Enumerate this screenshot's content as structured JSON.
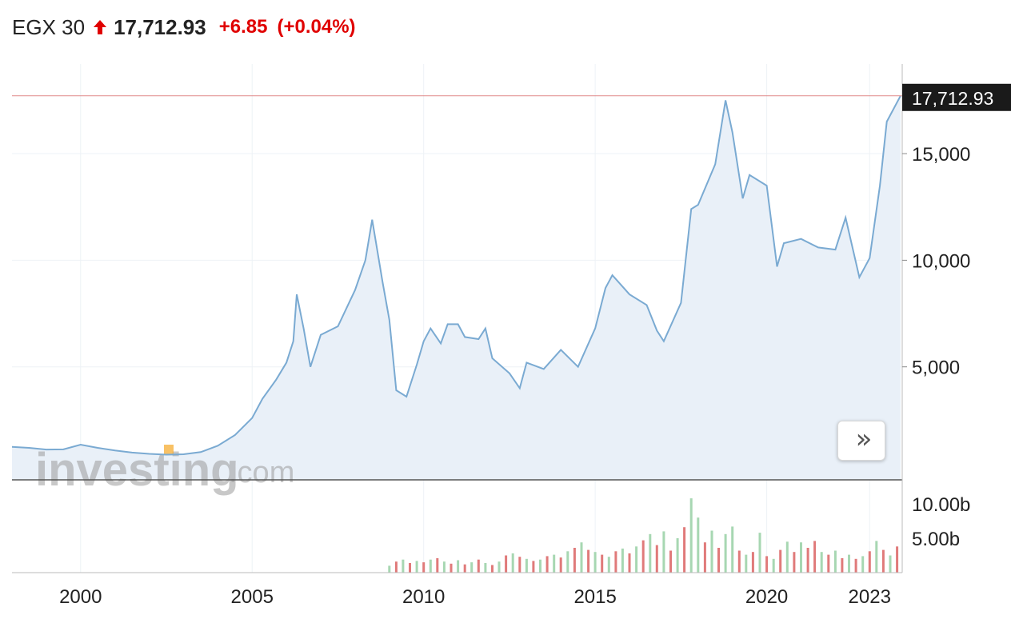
{
  "header": {
    "name": "EGX 30",
    "price": "17,712.93",
    "change": "+6.85",
    "change_pct": "(+0.04%)",
    "direction_icon": "up-arrow-icon",
    "up_color": "#e00000"
  },
  "watermark": {
    "brand": "investing",
    "suffix": ".com"
  },
  "nav_button": {
    "icon": "double-chevron-right-icon",
    "glyph": "»"
  },
  "colors": {
    "line": "#7aaad2",
    "area": "#e9f0f8",
    "grid": "#eef2f6",
    "up_volume": "#a7d7b2",
    "down_volume": "#e07a7a",
    "price_tag_bg": "#1a1a1a",
    "last_price_line": "#e08a8a"
  },
  "chart_data": {
    "type": "area",
    "x_ticks": [
      "2000",
      "2005",
      "2010",
      "2015",
      "2020",
      "2023"
    ],
    "y_ticks": [
      "15,000",
      "10,000",
      "5,000"
    ],
    "y_tick_values": [
      15000,
      10000,
      5000
    ],
    "volume_ticks": [
      "10.00b",
      "5.00b"
    ],
    "volume_tick_values": [
      10,
      5
    ],
    "last_price": 17712.93,
    "last_price_label": "17,712.93",
    "price_series": [
      [
        1998.0,
        1250
      ],
      [
        1998.5,
        1200
      ],
      [
        1999.0,
        1120
      ],
      [
        1999.5,
        1130
      ],
      [
        2000.0,
        1350
      ],
      [
        2000.5,
        1200
      ],
      [
        2001.0,
        1080
      ],
      [
        2001.5,
        980
      ],
      [
        2002.0,
        920
      ],
      [
        2002.5,
        880
      ],
      [
        2003.0,
        900
      ],
      [
        2003.5,
        1000
      ],
      [
        2004.0,
        1300
      ],
      [
        2004.5,
        1800
      ],
      [
        2005.0,
        2600
      ],
      [
        2005.3,
        3500
      ],
      [
        2005.7,
        4400
      ],
      [
        2006.0,
        5200
      ],
      [
        2006.2,
        6200
      ],
      [
        2006.3,
        8400
      ],
      [
        2006.5,
        6800
      ],
      [
        2006.7,
        5000
      ],
      [
        2007.0,
        6500
      ],
      [
        2007.5,
        6900
      ],
      [
        2008.0,
        8600
      ],
      [
        2008.3,
        10000
      ],
      [
        2008.5,
        11900
      ],
      [
        2008.8,
        9000
      ],
      [
        2009.0,
        7200
      ],
      [
        2009.2,
        3900
      ],
      [
        2009.5,
        3600
      ],
      [
        2009.8,
        5100
      ],
      [
        2010.0,
        6200
      ],
      [
        2010.2,
        6800
      ],
      [
        2010.5,
        6100
      ],
      [
        2010.7,
        7000
      ],
      [
        2011.0,
        7000
      ],
      [
        2011.2,
        6400
      ],
      [
        2011.6,
        6300
      ],
      [
        2011.8,
        6800
      ],
      [
        2012.0,
        5400
      ],
      [
        2012.5,
        4700
      ],
      [
        2012.8,
        4000
      ],
      [
        2013.0,
        5200
      ],
      [
        2013.5,
        4900
      ],
      [
        2014.0,
        5800
      ],
      [
        2014.5,
        5000
      ],
      [
        2015.0,
        6800
      ],
      [
        2015.3,
        8700
      ],
      [
        2015.5,
        9300
      ],
      [
        2016.0,
        8400
      ],
      [
        2016.5,
        7900
      ],
      [
        2016.8,
        6700
      ],
      [
        2017.0,
        6200
      ],
      [
        2017.5,
        8000
      ],
      [
        2017.8,
        12400
      ],
      [
        2018.0,
        12600
      ],
      [
        2018.5,
        14500
      ],
      [
        2018.8,
        17500
      ],
      [
        2019.0,
        16000
      ],
      [
        2019.3,
        12900
      ],
      [
        2019.5,
        14000
      ],
      [
        2020.0,
        13500
      ],
      [
        2020.3,
        9700
      ],
      [
        2020.5,
        10800
      ],
      [
        2021.0,
        11000
      ],
      [
        2021.5,
        10600
      ],
      [
        2022.0,
        10500
      ],
      [
        2022.3,
        12000
      ],
      [
        2022.7,
        9200
      ],
      [
        2023.0,
        10100
      ],
      [
        2023.3,
        13500
      ],
      [
        2023.5,
        16500
      ],
      [
        2023.9,
        17712.93
      ]
    ],
    "volume_series": [
      [
        2009.0,
        1.0,
        "up"
      ],
      [
        2009.2,
        1.6,
        "down"
      ],
      [
        2009.4,
        1.9,
        "up"
      ],
      [
        2009.6,
        1.4,
        "down"
      ],
      [
        2009.8,
        1.7,
        "up"
      ],
      [
        2010.0,
        1.5,
        "down"
      ],
      [
        2010.2,
        1.9,
        "up"
      ],
      [
        2010.4,
        2.1,
        "down"
      ],
      [
        2010.6,
        1.6,
        "up"
      ],
      [
        2010.8,
        1.3,
        "down"
      ],
      [
        2011.0,
        1.8,
        "up"
      ],
      [
        2011.2,
        1.2,
        "down"
      ],
      [
        2011.4,
        1.5,
        "up"
      ],
      [
        2011.6,
        1.9,
        "down"
      ],
      [
        2011.8,
        1.4,
        "up"
      ],
      [
        2012.0,
        1.1,
        "down"
      ],
      [
        2012.2,
        1.6,
        "up"
      ],
      [
        2012.4,
        2.5,
        "down"
      ],
      [
        2012.6,
        2.8,
        "up"
      ],
      [
        2012.8,
        2.3,
        "down"
      ],
      [
        2013.0,
        2.0,
        "up"
      ],
      [
        2013.2,
        1.7,
        "down"
      ],
      [
        2013.4,
        1.9,
        "up"
      ],
      [
        2013.6,
        2.4,
        "down"
      ],
      [
        2013.8,
        2.6,
        "up"
      ],
      [
        2014.0,
        2.2,
        "down"
      ],
      [
        2014.2,
        3.1,
        "up"
      ],
      [
        2014.4,
        3.6,
        "down"
      ],
      [
        2014.6,
        4.4,
        "up"
      ],
      [
        2014.8,
        3.3,
        "down"
      ],
      [
        2015.0,
        3.0,
        "up"
      ],
      [
        2015.2,
        2.6,
        "down"
      ],
      [
        2015.4,
        2.3,
        "up"
      ],
      [
        2015.6,
        3.1,
        "down"
      ],
      [
        2015.8,
        3.5,
        "up"
      ],
      [
        2016.0,
        2.8,
        "down"
      ],
      [
        2016.2,
        3.8,
        "up"
      ],
      [
        2016.4,
        4.7,
        "down"
      ],
      [
        2016.6,
        5.6,
        "up"
      ],
      [
        2016.8,
        4.0,
        "down"
      ],
      [
        2017.0,
        6.0,
        "up"
      ],
      [
        2017.2,
        3.2,
        "down"
      ],
      [
        2017.4,
        5.0,
        "up"
      ],
      [
        2017.6,
        6.6,
        "down"
      ],
      [
        2017.8,
        10.8,
        "up"
      ],
      [
        2018.0,
        8.0,
        "up"
      ],
      [
        2018.2,
        4.4,
        "down"
      ],
      [
        2018.4,
        6.1,
        "up"
      ],
      [
        2018.6,
        3.6,
        "down"
      ],
      [
        2018.8,
        5.6,
        "up"
      ],
      [
        2019.0,
        6.7,
        "up"
      ],
      [
        2019.2,
        3.2,
        "down"
      ],
      [
        2019.4,
        2.6,
        "up"
      ],
      [
        2019.6,
        3.0,
        "down"
      ],
      [
        2019.8,
        5.8,
        "up"
      ],
      [
        2020.0,
        2.4,
        "down"
      ],
      [
        2020.2,
        2.0,
        "up"
      ],
      [
        2020.4,
        3.3,
        "down"
      ],
      [
        2020.6,
        4.5,
        "up"
      ],
      [
        2020.8,
        3.0,
        "down"
      ],
      [
        2021.0,
        4.4,
        "up"
      ],
      [
        2021.2,
        3.6,
        "down"
      ],
      [
        2021.4,
        4.6,
        "down"
      ],
      [
        2021.6,
        3.0,
        "up"
      ],
      [
        2021.8,
        2.6,
        "down"
      ],
      [
        2022.0,
        3.2,
        "up"
      ],
      [
        2022.2,
        2.1,
        "down"
      ],
      [
        2022.4,
        2.6,
        "up"
      ],
      [
        2022.6,
        2.0,
        "down"
      ],
      [
        2022.8,
        2.4,
        "up"
      ],
      [
        2023.0,
        3.1,
        "down"
      ],
      [
        2023.2,
        4.6,
        "up"
      ],
      [
        2023.4,
        3.3,
        "down"
      ],
      [
        2023.6,
        2.5,
        "up"
      ],
      [
        2023.8,
        3.8,
        "down"
      ]
    ]
  }
}
